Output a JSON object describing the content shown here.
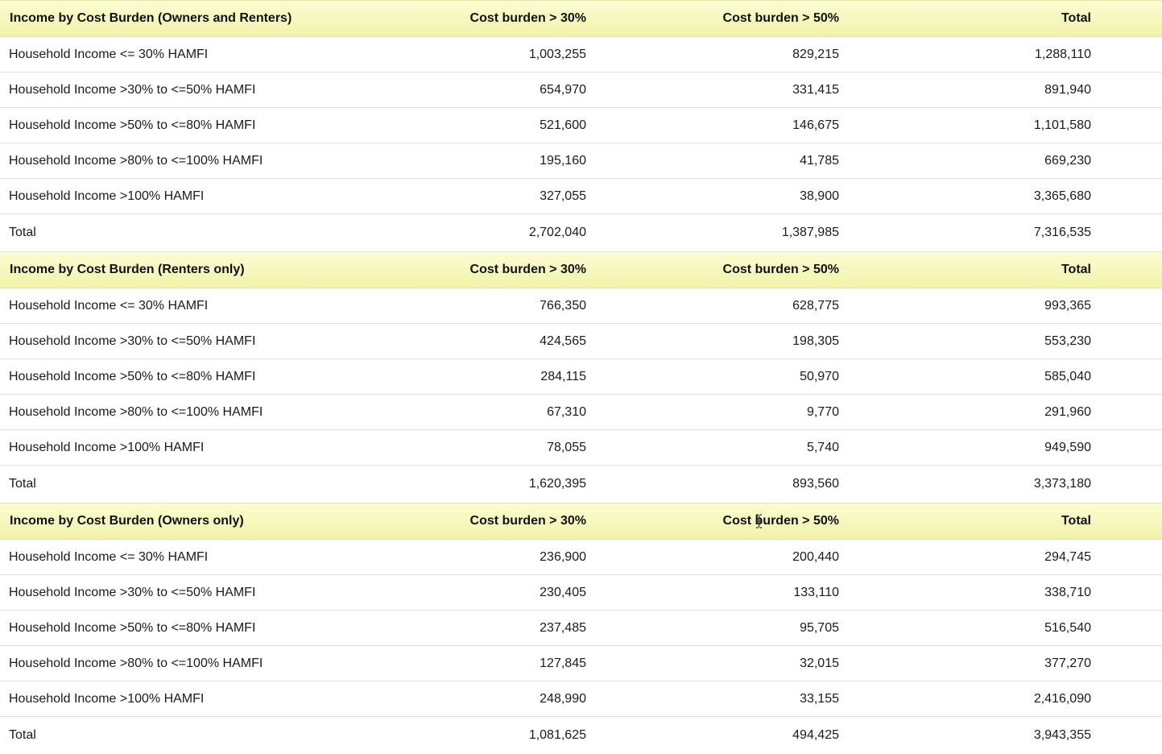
{
  "colors": {
    "header_background_top": "#fbfcd2",
    "header_background_bottom": "#f1f3a8",
    "row_divider": "#e6e3c4",
    "text": "#1a1a1a"
  },
  "sections": [
    {
      "title": "Income by Cost Burden (Owners and Renters)",
      "columns": [
        "Cost burden > 30%",
        "Cost burden > 50%",
        "Total"
      ],
      "rows": [
        {
          "label": "Household Income <= 30% HAMFI",
          "values": [
            "1,003,255",
            "829,215",
            "1,288,110"
          ]
        },
        {
          "label": "Household Income >30% to <=50% HAMFI",
          "values": [
            "654,970",
            "331,415",
            "891,940"
          ]
        },
        {
          "label": "Household Income >50% to <=80% HAMFI",
          "values": [
            "521,600",
            "146,675",
            "1,101,580"
          ]
        },
        {
          "label": "Household Income >80% to <=100% HAMFI",
          "values": [
            "195,160",
            "41,785",
            "669,230"
          ]
        },
        {
          "label": "Household Income >100% HAMFI",
          "values": [
            "327,055",
            "38,900",
            "3,365,680"
          ]
        },
        {
          "label": "Total",
          "values": [
            "2,702,040",
            "1,387,985",
            "7,316,535"
          ]
        }
      ]
    },
    {
      "title": "Income by Cost Burden (Renters only)",
      "columns": [
        "Cost burden > 30%",
        "Cost burden > 50%",
        "Total"
      ],
      "rows": [
        {
          "label": "Household Income <= 30% HAMFI",
          "values": [
            "766,350",
            "628,775",
            "993,365"
          ]
        },
        {
          "label": "Household Income >30% to <=50% HAMFI",
          "values": [
            "424,565",
            "198,305",
            "553,230"
          ]
        },
        {
          "label": "Household Income >50% to <=80% HAMFI",
          "values": [
            "284,115",
            "50,970",
            "585,040"
          ]
        },
        {
          "label": "Household Income >80% to <=100% HAMFI",
          "values": [
            "67,310",
            "9,770",
            "291,960"
          ]
        },
        {
          "label": "Household Income >100% HAMFI",
          "values": [
            "78,055",
            "5,740",
            "949,590"
          ]
        },
        {
          "label": "Total",
          "values": [
            "1,620,395",
            "893,560",
            "3,373,180"
          ]
        }
      ]
    },
    {
      "title": "Income by Cost Burden (Owners only)",
      "columns": [
        "Cost burden > 30%",
        "Cost burden > 50%",
        "Total"
      ],
      "rows": [
        {
          "label": "Household Income <= 30% HAMFI",
          "values": [
            "236,900",
            "200,440",
            "294,745"
          ]
        },
        {
          "label": "Household Income >30% to <=50% HAMFI",
          "values": [
            "230,405",
            "133,110",
            "338,710"
          ]
        },
        {
          "label": "Household Income >50% to <=80% HAMFI",
          "values": [
            "237,485",
            "95,705",
            "516,540"
          ]
        },
        {
          "label": "Household Income >80% to <=100% HAMFI",
          "values": [
            "127,845",
            "32,015",
            "377,270"
          ]
        },
        {
          "label": "Household Income >100% HAMFI",
          "values": [
            "248,990",
            "33,155",
            "2,416,090"
          ]
        },
        {
          "label": "Total",
          "values": [
            "1,081,625",
            "494,425",
            "3,943,355"
          ]
        }
      ]
    }
  ],
  "cursor": {
    "icon": "text-cursor-icon"
  }
}
